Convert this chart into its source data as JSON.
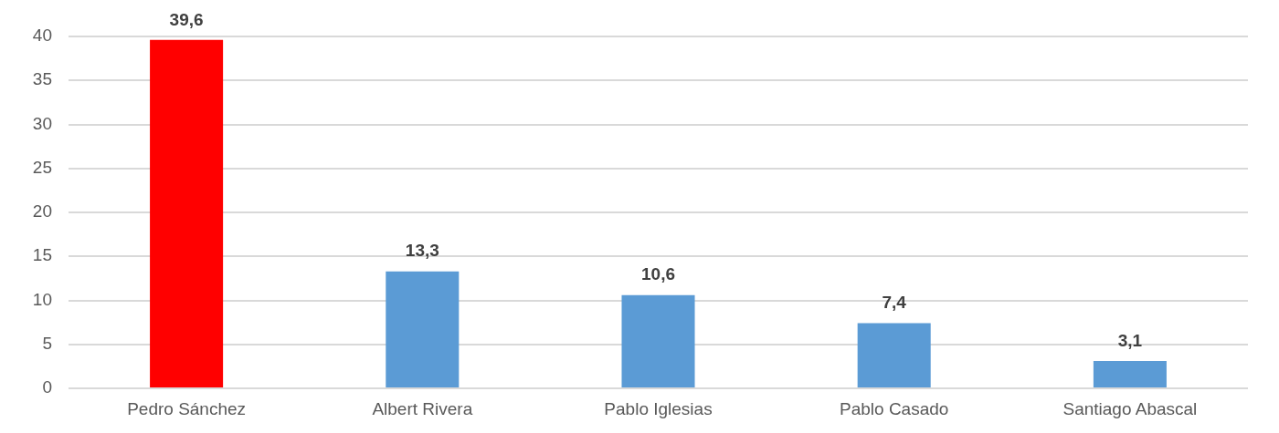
{
  "chart_data": {
    "type": "bar",
    "categories": [
      "Pedro Sánchez",
      "Albert Rivera",
      "Pablo Iglesias",
      "Pablo Casado",
      "Santiago Abascal"
    ],
    "values": [
      39.6,
      13.3,
      10.6,
      7.4,
      3.1
    ],
    "value_labels": [
      "39,6",
      "13,3",
      "10,6",
      "7,4",
      "3,1"
    ],
    "colors": [
      "#ff0000",
      "#5b9bd5",
      "#5b9bd5",
      "#5b9bd5",
      "#5b9bd5"
    ],
    "ylim": [
      0,
      40
    ],
    "yticks": [
      0,
      5,
      10,
      15,
      20,
      25,
      30,
      35,
      40
    ],
    "grid": "y",
    "legend": false
  }
}
